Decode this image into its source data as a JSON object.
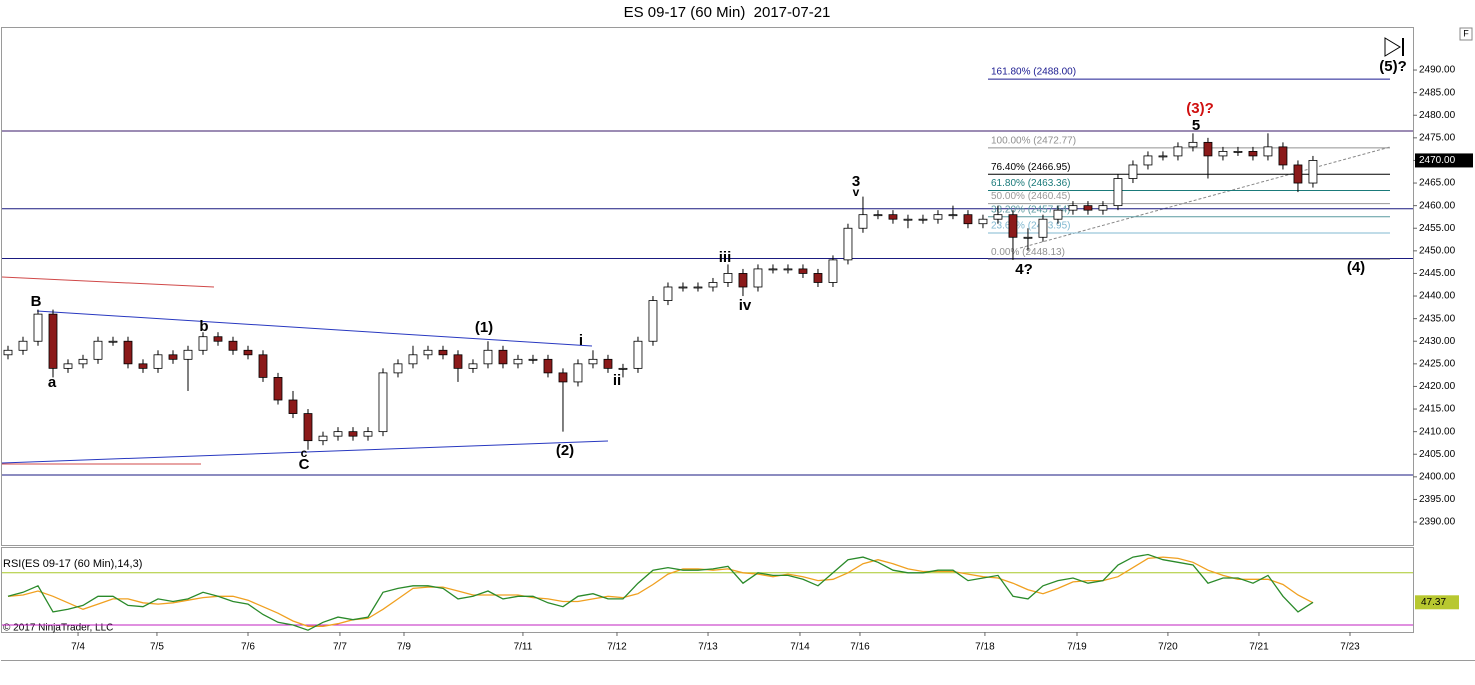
{
  "chart_data": {
    "type": "candlestick",
    "title": "ES 09-17 (60 Min)  2017-07-21",
    "corner_label": "F",
    "copyright": "© 2017 NinjaTrader, LLC",
    "ylim": [
      2384.7,
      2499.3
    ],
    "yticks": [
      {
        "value": 2390,
        "label": "2390.00"
      },
      {
        "value": 2395,
        "label": "2395.00"
      },
      {
        "value": 2400,
        "label": "2400.00"
      },
      {
        "value": 2405,
        "label": "2405.00"
      },
      {
        "value": 2410,
        "label": "2410.00"
      },
      {
        "value": 2415,
        "label": "2415.00"
      },
      {
        "value": 2420,
        "label": "2420.00"
      },
      {
        "value": 2425,
        "label": "2425.00"
      },
      {
        "value": 2430,
        "label": "2430.00"
      },
      {
        "value": 2435,
        "label": "2435.00"
      },
      {
        "value": 2440,
        "label": "2440.00"
      },
      {
        "value": 2445,
        "label": "2445.00"
      },
      {
        "value": 2450,
        "label": "2450.00"
      },
      {
        "value": 2455,
        "label": "2455.00"
      },
      {
        "value": 2460,
        "label": "2460.00"
      },
      {
        "value": 2465,
        "label": "2465.00"
      },
      {
        "value": 2470,
        "label": "2470.00"
      },
      {
        "value": 2475,
        "label": "2475.00"
      },
      {
        "value": 2480,
        "label": "2480.00"
      },
      {
        "value": 2485,
        "label": "2485.00"
      },
      {
        "value": 2490,
        "label": "2490.00"
      }
    ],
    "xlim": [
      -0.4,
      93.67
    ],
    "xticks": [
      {
        "value": 4.67,
        "label": "7/4"
      },
      {
        "value": 9.93,
        "label": "7/5"
      },
      {
        "value": 16,
        "label": "7/6"
      },
      {
        "value": 22.13,
        "label": "7/7"
      },
      {
        "value": 26.4,
        "label": "7/9"
      },
      {
        "value": 34.33,
        "label": "7/11"
      },
      {
        "value": 40.6,
        "label": "7/12"
      },
      {
        "value": 46.67,
        "label": "7/13"
      },
      {
        "value": 52.8,
        "label": "7/14"
      },
      {
        "value": 56.8,
        "label": "7/16"
      },
      {
        "value": 65.13,
        "label": "7/18"
      },
      {
        "value": 71.27,
        "label": "7/19"
      },
      {
        "value": 77.33,
        "label": "7/20"
      },
      {
        "value": 83.4,
        "label": "7/21"
      },
      {
        "value": 89.47,
        "label": "7/23"
      }
    ],
    "up_color": "#ffffff",
    "down_color": "#8b1a1a",
    "open": [
      2427,
      2428,
      2430,
      2436,
      2424,
      2425,
      2426,
      2430,
      2430,
      2425,
      2424,
      2427,
      2426,
      2428,
      2431,
      2430,
      2428,
      2427,
      2422,
      2417,
      2414,
      2408,
      2409,
      2410,
      2409,
      2410,
      2423,
      2425,
      2427,
      2428,
      2427,
      2424,
      2425,
      2428,
      2425,
      2426,
      2426,
      2423,
      2421,
      2425,
      2426,
      2424,
      2424,
      2430,
      2439,
      2442,
      2442,
      2442,
      2443,
      2445,
      2442,
      2446,
      2446,
      2446,
      2445,
      2443,
      2448,
      2455,
      2458,
      2458,
      2457,
      2457,
      2457,
      2458,
      2458,
      2456,
      2457,
      2458,
      2453,
      2453,
      2457,
      2459,
      2460,
      2459,
      2460,
      2466,
      2469,
      2471,
      2471,
      2473,
      2474,
      2471,
      2472,
      2472,
      2471,
      2473,
      2469,
      2465
    ],
    "high": [
      2429,
      2431,
      2437,
      2437,
      2426,
      2427,
      2431,
      2431,
      2431,
      2426,
      2428,
      2428,
      2429,
      2432,
      2432,
      2431,
      2429,
      2428,
      2423,
      2419,
      2415,
      2410,
      2411,
      2411,
      2411,
      2424,
      2426,
      2429,
      2429,
      2429,
      2428,
      2426,
      2430,
      2429,
      2427,
      2427,
      2427,
      2424,
      2426,
      2428,
      2427,
      2425,
      2431,
      2440,
      2443,
      2443,
      2443,
      2444,
      2447,
      2446,
      2447,
      2447,
      2447,
      2447,
      2446,
      2449,
      2456,
      2462,
      2459,
      2459,
      2458,
      2458,
      2459,
      2460,
      2459,
      2458,
      2460,
      2459,
      2455,
      2458,
      2460,
      2461,
      2461,
      2461,
      2467,
      2470,
      2472,
      2472,
      2474,
      2476,
      2475,
      2473,
      2473,
      2473,
      2476,
      2474,
      2470,
      2471
    ],
    "low": [
      2426,
      2427,
      2429,
      2422,
      2423,
      2424,
      2425,
      2429,
      2424,
      2423,
      2423,
      2425,
      2419,
      2427,
      2429,
      2427,
      2426,
      2421,
      2416,
      2413,
      2406,
      2407,
      2408,
      2408,
      2408,
      2409,
      2422,
      2424,
      2426,
      2426,
      2421,
      2423,
      2424,
      2424,
      2424,
      2425,
      2422,
      2410,
      2420,
      2424,
      2423,
      2422,
      2423,
      2429,
      2438,
      2441,
      2441,
      2441,
      2442,
      2440,
      2441,
      2445,
      2445,
      2444,
      2442,
      2442,
      2447,
      2454,
      2457,
      2456,
      2455,
      2456,
      2456,
      2457,
      2455,
      2455,
      2456,
      2448,
      2450,
      2452,
      2456,
      2458,
      2458,
      2458,
      2459,
      2465,
      2468,
      2470,
      2470,
      2472,
      2466,
      2470,
      2471,
      2470,
      2470,
      2468,
      2463,
      2464
    ],
    "close": [
      2428,
      2430,
      2436,
      2424,
      2425,
      2426,
      2430,
      2430,
      2425,
      2424,
      2427,
      2426,
      2428,
      2431,
      2430,
      2428,
      2427,
      2422,
      2417,
      2414,
      2408,
      2409,
      2410,
      2409,
      2410,
      2423,
      2425,
      2427,
      2428,
      2427,
      2424,
      2425,
      2428,
      2425,
      2426,
      2426,
      2423,
      2421,
      2425,
      2426,
      2424,
      2424,
      2430,
      2439,
      2442,
      2442,
      2442,
      2443,
      2445,
      2442,
      2446,
      2446,
      2446,
      2445,
      2443,
      2448,
      2455,
      2458,
      2458,
      2457,
      2457,
      2457,
      2458,
      2458,
      2456,
      2457,
      2458,
      2453,
      2453,
      2457,
      2459,
      2460,
      2459,
      2460,
      2466,
      2469,
      2471,
      2471,
      2473,
      2474,
      2471,
      2472,
      2472,
      2471,
      2473,
      2469,
      2465,
      2470
    ],
    "last_price": {
      "value": 2470,
      "label": "2470.00"
    },
    "horizontal_lines": [
      {
        "value": 2476.5,
        "color": "#3a1a6a"
      },
      {
        "value": 2459.3,
        "color": "#1a1a80"
      },
      {
        "value": 2448.3,
        "color": "#1a1a80"
      },
      {
        "value": 2400.4,
        "color": "#1a1a80"
      }
    ],
    "fib_levels": [
      {
        "label": "161.80% (2488.00)",
        "value": 2488.0,
        "color": "#1a1a90"
      },
      {
        "label": "100.00% (2472.77)",
        "value": 2472.77,
        "color": "#909090"
      },
      {
        "label": "76.40% (2466.95)",
        "value": 2466.95,
        "color": "#000000"
      },
      {
        "label": "61.80% (2463.36)",
        "value": 2463.36,
        "color": "#1a7a7a"
      },
      {
        "label": "50.00% (2460.45)",
        "value": 2460.45,
        "color": "#9a9a9a"
      },
      {
        "label": "38.20% (2457.54)",
        "value": 2457.54,
        "color": "#5a9aa0"
      },
      {
        "label": "23.60% (2453.95)",
        "value": 2453.95,
        "color": "#80b8d0"
      },
      {
        "label": "0.00% (2448.13)",
        "value": 2448.13,
        "color": "#909090"
      }
    ],
    "annotations": [
      "B",
      "a",
      "b",
      "c",
      "C",
      "(1)",
      "i",
      "(2)",
      "ii",
      "iii",
      "iv",
      "3",
      "v",
      "4?",
      "(3)?",
      "5",
      "(4)",
      "(5)?"
    ],
    "rsi": {
      "title": "RSI(ES 09-17 (60 Min),14,3)",
      "ylim": [
        24.6,
        89
      ],
      "levels": [
        {
          "value": 70,
          "color": "#a8c828"
        },
        {
          "value": 30,
          "color": "#c020c0"
        }
      ],
      "flag_color": "#b8c830",
      "series": [
        {
          "color": "#2a8a2a",
          "values": [
            52,
            55,
            60,
            40,
            42,
            45,
            52,
            52,
            45,
            44,
            50,
            48,
            50,
            55,
            52,
            48,
            46,
            38,
            32,
            30,
            26,
            32,
            36,
            34,
            36,
            55,
            58,
            60,
            60,
            58,
            50,
            52,
            56,
            50,
            52,
            52,
            47,
            44,
            52,
            54,
            50,
            50,
            62,
            72,
            74,
            72,
            72,
            73,
            75,
            62,
            70,
            68,
            68,
            65,
            60,
            70,
            80,
            82,
            78,
            72,
            70,
            70,
            72,
            72,
            64,
            66,
            68,
            52,
            50,
            60,
            64,
            66,
            62,
            64,
            76,
            82,
            84,
            80,
            78,
            76,
            62,
            66,
            66,
            62,
            68,
            52,
            40,
            47.37
          ]
        },
        {
          "color": "#f0a020",
          "values": [
            52,
            53,
            56,
            52,
            47,
            42,
            46,
            50,
            50,
            47,
            46,
            47,
            49,
            51,
            52,
            52,
            49,
            44,
            39,
            33,
            29,
            29,
            31,
            34,
            35,
            42,
            50,
            58,
            59,
            59,
            56,
            53,
            53,
            53,
            53,
            51,
            50,
            48,
            48,
            50,
            52,
            51,
            54,
            61,
            69,
            73,
            73,
            72,
            73,
            70,
            69,
            67,
            69,
            67,
            64,
            65,
            70,
            77,
            80,
            77,
            73,
            71,
            71,
            71,
            69,
            67,
            66,
            62,
            57,
            54,
            58,
            63,
            64,
            64,
            67,
            74,
            81,
            82,
            81,
            78,
            72,
            68,
            65,
            65,
            65,
            61,
            53,
            47
          ]
        }
      ]
    }
  }
}
